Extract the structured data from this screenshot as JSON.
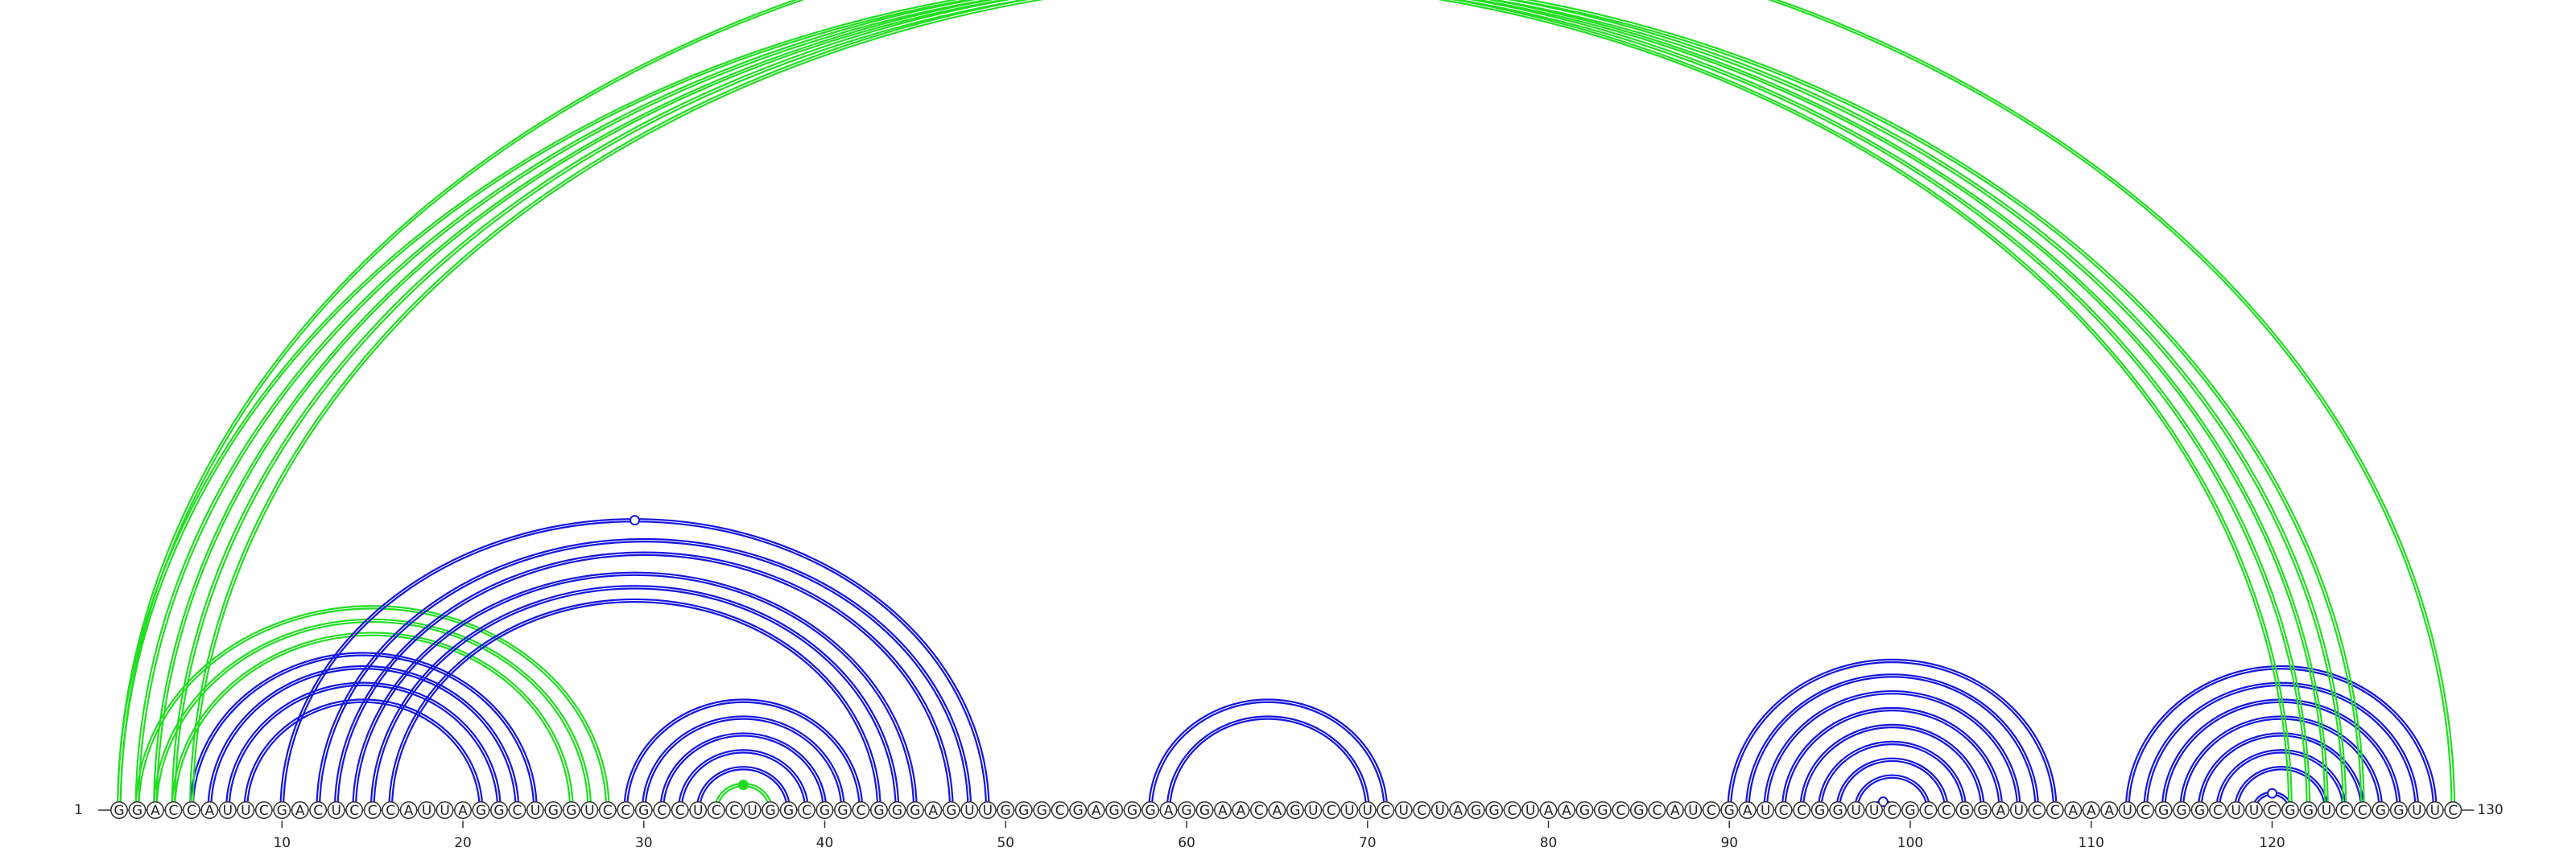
{
  "chart_data": {
    "type": "arc-diagram",
    "sequence": "GGACCAUUCGACUCCCAUUAGGCUGGUCCGCCUCCUGGCGGCGGGAGUUGGGCGAGGGAGGAACAGUCUUCUCUAGGCUAAGGCGCAUCGAUCCGGUUCGCCGGAUCCAAAUCGGGCUUCGGUCCGGUUC",
    "length": 130,
    "start_label": "1",
    "end_label": "130",
    "ticks": [
      10,
      20,
      30,
      40,
      50,
      60,
      70,
      80,
      90,
      100,
      110,
      120
    ],
    "colors": {
      "blue": "#1515e0",
      "green": "#22dd22"
    },
    "arc_groups": [
      {
        "color": "blue",
        "side": "top",
        "pairs": [
          [
            5,
            24
          ],
          [
            6,
            23
          ],
          [
            7,
            22
          ],
          [
            8,
            21
          ]
        ]
      },
      {
        "color": "green",
        "side": "top",
        "pairs": [
          [
            2,
            28
          ],
          [
            3,
            27
          ],
          [
            4,
            26
          ]
        ]
      },
      {
        "color": "blue",
        "side": "top",
        "pairs": [
          [
            10,
            49
          ],
          [
            12,
            48
          ],
          [
            13,
            47
          ],
          [
            14,
            45
          ],
          [
            15,
            44
          ],
          [
            16,
            43
          ]
        ],
        "dot_on_first": true,
        "dot_style": "open"
      },
      {
        "color": "blue",
        "side": "top",
        "pairs": [
          [
            29,
            42
          ],
          [
            30,
            41
          ],
          [
            31,
            40
          ],
          [
            32,
            39
          ],
          [
            33,
            38
          ]
        ]
      },
      {
        "color": "green",
        "side": "top",
        "pairs": [
          [
            34,
            37
          ]
        ],
        "dot_on_first": true,
        "dot_style": "filled"
      },
      {
        "color": "blue",
        "side": "top",
        "pairs": [
          [
            58,
            71
          ],
          [
            59,
            70
          ]
        ]
      },
      {
        "color": "blue",
        "side": "top",
        "pairs": [
          [
            90,
            108
          ],
          [
            91,
            107
          ],
          [
            92,
            106
          ],
          [
            93,
            105
          ],
          [
            94,
            104
          ],
          [
            95,
            103
          ],
          [
            96,
            102
          ],
          [
            97,
            101
          ]
        ]
      },
      {
        "color": "blue",
        "side": "top",
        "pairs": [
          [
            98,
            99
          ]
        ],
        "dot_on_first": true,
        "dot_style": "open"
      },
      {
        "color": "blue",
        "side": "top",
        "pairs": [
          [
            112,
            129
          ],
          [
            113,
            128
          ],
          [
            114,
            127
          ],
          [
            115,
            126
          ],
          [
            116,
            125
          ],
          [
            117,
            124
          ],
          [
            118,
            123
          ]
        ]
      },
      {
        "color": "blue",
        "side": "top",
        "pairs": [
          [
            119,
            121
          ]
        ],
        "dot_on_first": true,
        "dot_style": "open"
      },
      {
        "color": "green",
        "side": "top",
        "pairs": [
          [
            1,
            121
          ],
          [
            2,
            122
          ],
          [
            3,
            123
          ],
          [
            4,
            124
          ],
          [
            5,
            125
          ]
        ]
      },
      {
        "color": "green",
        "side": "top",
        "pairs": [
          [
            1,
            130
          ]
        ],
        "dot_on_first": true,
        "dot_style": "open"
      }
    ]
  }
}
